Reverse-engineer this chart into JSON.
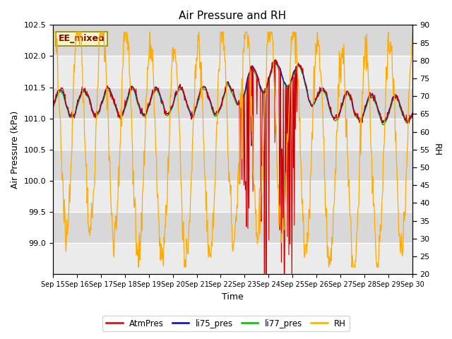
{
  "title": "Air Pressure and RH",
  "xlabel": "Time",
  "ylabel_left": "Air Pressure (kPa)",
  "ylabel_right": "RH",
  "ylim_left": [
    98.5,
    102.5
  ],
  "ylim_right": [
    20,
    90
  ],
  "yticks_left": [
    99.0,
    99.5,
    100.0,
    100.5,
    101.0,
    101.5,
    102.0,
    102.5
  ],
  "yticks_right": [
    20,
    25,
    30,
    35,
    40,
    45,
    50,
    55,
    60,
    65,
    70,
    75,
    80,
    85,
    90
  ],
  "xtick_labels": [
    "Sep 15",
    "Sep 16",
    "Sep 17",
    "Sep 18",
    "Sep 19",
    "Sep 20",
    "Sep 21",
    "Sep 22",
    "Sep 23",
    "Sep 24",
    "Sep 25",
    "Sep 26",
    "Sep 27",
    "Sep 28",
    "Sep 29",
    "Sep 30"
  ],
  "legend_labels": [
    "AtmPres",
    "li75_pres",
    "li77_pres",
    "RH"
  ],
  "colors": {
    "AtmPres": "#cc0000",
    "li75_pres": "#0000cc",
    "li77_pres": "#00bb00",
    "RH": "#ffaa00"
  },
  "annotation_text": "EE_mixed",
  "annotation_color": "#8B0000",
  "annotation_bg": "#f5f5c8",
  "annotation_border": "#8B8B00",
  "background_outer": "#ffffff",
  "background_band1": "#d8d8d8",
  "background_band2": "#ebebeb",
  "grid_color": "#ffffff",
  "figsize": [
    6.4,
    4.8
  ],
  "dpi": 100
}
